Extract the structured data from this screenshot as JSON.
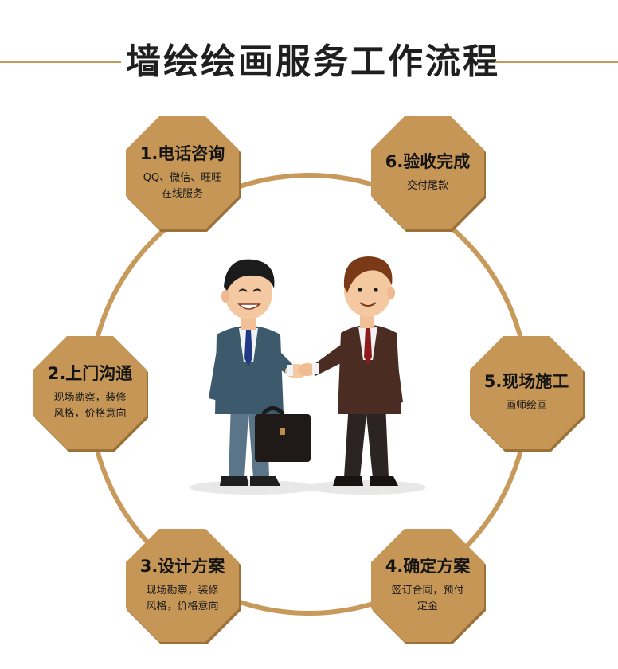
{
  "title": "墙绘绘画服务工作流程",
  "colors": {
    "accent": "#c79a5c",
    "octagon": "#c69657",
    "octagon_shadow": "#9c7138"
  },
  "steps": [
    {
      "title": "1.电话咨询",
      "desc": "QQ、微信、旺旺\n在线服务"
    },
    {
      "title": "2.上门沟通",
      "desc": "现场勘察，装修\n风格，价格意向"
    },
    {
      "title": "3.设计方案",
      "desc": "现场勘察，装修\n风格，价格意向"
    },
    {
      "title": "4.确定方案",
      "desc": "签订合同，预付\n定金"
    },
    {
      "title": "5.现场施工",
      "desc": "画师绘画"
    },
    {
      "title": "6.验收完成",
      "desc": "交付尾款"
    }
  ]
}
